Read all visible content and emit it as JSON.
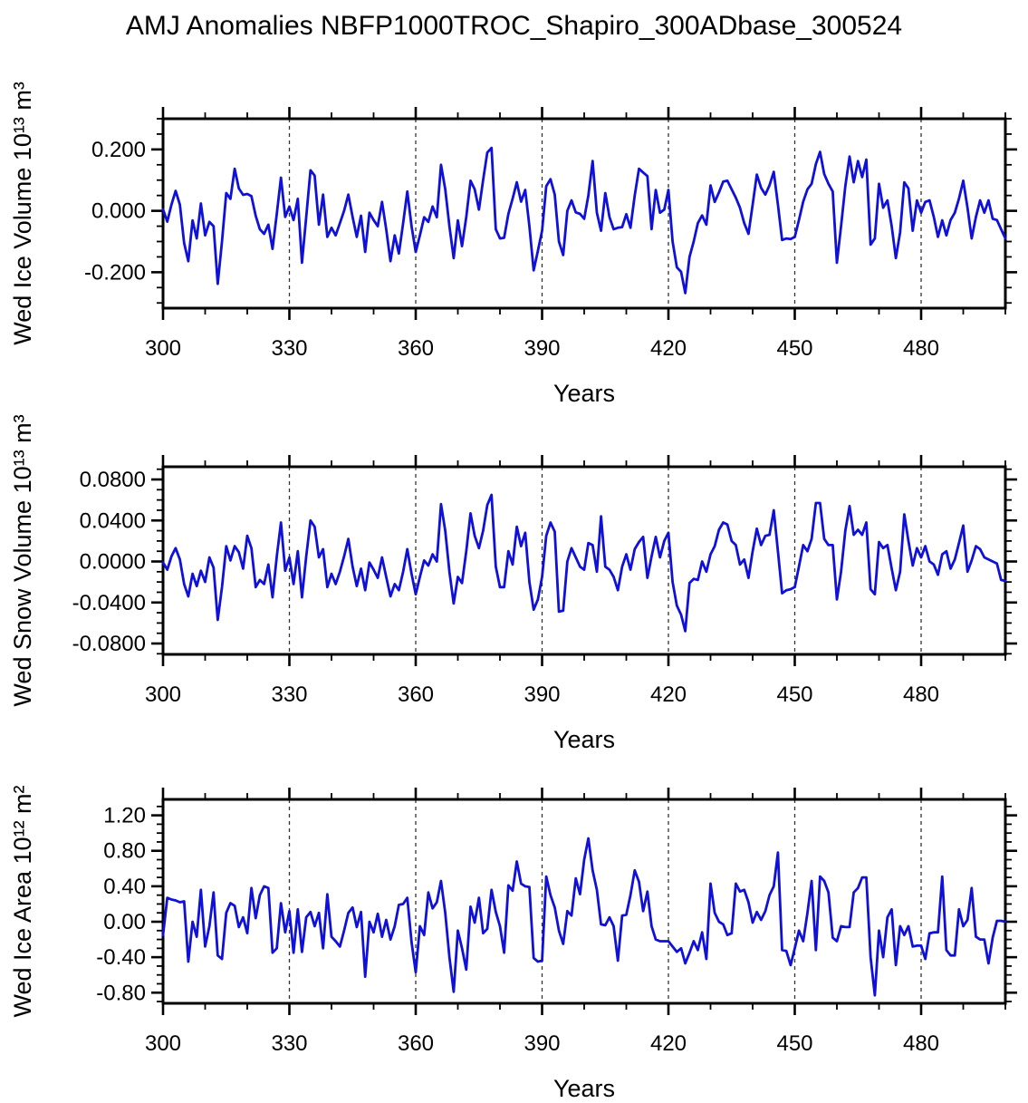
{
  "title": "AMJ Anomalies NBFP1000TROC_Shapiro_300ADbase_300524",
  "line_color": "#0f10d8",
  "chart_data": [
    {
      "type": "line",
      "title": "AMJ Anomalies NBFP1000TROC_Shapiro_300ADbase_300524",
      "ylabel": "Wed Ice Volume 10¹³ m³",
      "xlabel": "Years",
      "x_start": 300,
      "x_step": 1,
      "xlim": [
        300,
        500
      ],
      "ylim": [
        -0.317,
        0.3
      ],
      "xticks": {
        "major": [
          300,
          330,
          360,
          390,
          420,
          450,
          480
        ],
        "labels": [
          "300",
          "330",
          "360",
          "390",
          "420",
          "450",
          "480"
        ],
        "minor_step": 10
      },
      "yticks": {
        "major": [
          0.2,
          0.0,
          -0.2
        ],
        "labels": [
          "0.200",
          "0.000",
          "-0.200"
        ],
        "minor_step": 0.05
      },
      "gridlines_x": [
        330,
        360,
        390,
        420,
        450,
        480
      ],
      "line_color": "#0f10d8",
      "values": [
        0.005,
        -0.035,
        0.02,
        0.065,
        0.02,
        -0.105,
        -0.164,
        -0.031,
        -0.09,
        0.024,
        -0.08,
        -0.036,
        -0.05,
        -0.238,
        -0.1,
        0.058,
        0.039,
        0.137,
        0.073,
        0.052,
        0.055,
        0.048,
        -0.016,
        -0.06,
        -0.075,
        -0.045,
        -0.124,
        -0.01,
        0.108,
        -0.02,
        0.014,
        -0.03,
        0.039,
        -0.169,
        -0.02,
        0.132,
        0.115,
        -0.045,
        0.053,
        -0.085,
        -0.055,
        -0.08,
        -0.04,
        0.0,
        0.053,
        -0.02,
        -0.085,
        -0.016,
        -0.134,
        -0.006,
        -0.03,
        -0.05,
        0.029,
        -0.06,
        -0.164,
        -0.08,
        -0.139,
        -0.04,
        0.063,
        -0.05,
        -0.134,
        -0.08,
        -0.021,
        -0.036,
        0.014,
        -0.021,
        0.15,
        0.07,
        -0.05,
        -0.154,
        -0.031,
        -0.115,
        -0.02,
        0.098,
        0.07,
        0.004,
        0.1,
        0.19,
        0.205,
        -0.06,
        -0.09,
        -0.088,
        -0.01,
        0.04,
        0.093,
        0.03,
        0.068,
        -0.05,
        -0.194,
        -0.13,
        -0.065,
        0.08,
        0.103,
        0.053,
        -0.1,
        -0.144,
        0.0,
        0.034,
        -0.005,
        -0.01,
        -0.026,
        0.05,
        0.162,
        -0.006,
        -0.065,
        0.058,
        -0.02,
        -0.06,
        -0.055,
        -0.053,
        -0.011,
        -0.055,
        0.05,
        0.137,
        0.125,
        0.113,
        -0.06,
        0.068,
        -0.006,
        0.004,
        0.068,
        -0.1,
        -0.184,
        -0.199,
        -0.268,
        -0.15,
        -0.1,
        -0.04,
        -0.015,
        -0.045,
        0.083,
        0.029,
        0.06,
        0.095,
        0.098,
        0.07,
        0.043,
        0.01,
        -0.04,
        -0.075,
        0.02,
        0.118,
        0.075,
        0.053,
        0.083,
        0.127,
        0.02,
        -0.095,
        -0.09,
        -0.092,
        -0.085,
        -0.03,
        0.03,
        0.07,
        0.088,
        0.152,
        0.192,
        0.12,
        0.088,
        0.063,
        -0.169,
        -0.05,
        0.08,
        0.177,
        0.093,
        0.162,
        0.11,
        0.167,
        -0.11,
        -0.09,
        0.088,
        0.01,
        0.034,
        -0.05,
        -0.154,
        -0.07,
        0.093,
        0.073,
        -0.065,
        0.034,
        -0.006,
        0.029,
        0.034,
        -0.02,
        -0.085,
        -0.031,
        -0.08,
        -0.03,
        -0.006,
        0.04,
        0.098,
        0.01,
        -0.09,
        -0.02,
        0.034,
        -0.006,
        0.034,
        -0.026,
        -0.03,
        -0.06,
        -0.09
      ]
    },
    {
      "type": "line",
      "title": "",
      "ylabel": "Wed Snow Volume 10¹³ m³",
      "xlabel": "Years",
      "x_start": 300,
      "x_step": 1,
      "xlim": [
        300,
        500
      ],
      "ylim": [
        -0.0906,
        0.0924
      ],
      "xticks": {
        "major": [
          300,
          330,
          360,
          390,
          420,
          450,
          480
        ],
        "labels": [
          "300",
          "330",
          "360",
          "390",
          "420",
          "450",
          "480"
        ],
        "minor_step": 10
      },
      "yticks": {
        "major": [
          0.08,
          0.04,
          0.0,
          -0.04,
          -0.08
        ],
        "labels": [
          "0.0800",
          "0.0400",
          "0.0000",
          "-0.0400",
          "-0.0800"
        ],
        "minor_step": 0.01
      },
      "gridlines_x": [
        330,
        360,
        390,
        420,
        450,
        480
      ],
      "line_color": "#0f10d8",
      "values": [
        -0.001,
        -0.008,
        0.005,
        0.013,
        0.002,
        -0.022,
        -0.034,
        -0.012,
        -0.024,
        -0.009,
        -0.02,
        0.004,
        -0.006,
        -0.057,
        -0.025,
        0.015,
        0.001,
        0.015,
        0.009,
        -0.007,
        0.025,
        0.013,
        -0.025,
        -0.018,
        -0.022,
        -0.003,
        -0.035,
        0.005,
        0.038,
        -0.009,
        0.004,
        -0.022,
        0.01,
        -0.035,
        0.005,
        0.04,
        0.034,
        0.004,
        0.012,
        -0.025,
        -0.012,
        -0.022,
        -0.01,
        0.005,
        0.022,
        -0.005,
        -0.024,
        -0.007,
        -0.028,
        -0.001,
        -0.008,
        -0.016,
        0.004,
        -0.015,
        -0.034,
        -0.022,
        -0.028,
        -0.01,
        0.012,
        -0.012,
        -0.032,
        -0.015,
        0.001,
        -0.004,
        0.007,
        0.0,
        0.056,
        0.03,
        -0.01,
        -0.041,
        -0.015,
        -0.021,
        0.01,
        0.047,
        0.025,
        0.013,
        0.03,
        0.055,
        0.065,
        -0.005,
        -0.025,
        -0.025,
        0.01,
        -0.003,
        0.034,
        0.015,
        0.028,
        -0.02,
        -0.047,
        -0.037,
        -0.015,
        0.025,
        0.038,
        0.029,
        -0.049,
        -0.048,
        0.0,
        0.013,
        0.004,
        -0.005,
        -0.008,
        0.018,
        0.016,
        -0.01,
        0.044,
        -0.005,
        -0.008,
        -0.015,
        -0.028,
        -0.005,
        0.007,
        -0.008,
        0.012,
        0.019,
        0.024,
        -0.016,
        0.005,
        0.024,
        0.004,
        0.02,
        0.028,
        -0.02,
        -0.043,
        -0.052,
        -0.068,
        -0.021,
        -0.017,
        -0.018,
        0.0,
        -0.01,
        0.007,
        0.015,
        0.031,
        0.038,
        0.036,
        0.02,
        0.016,
        -0.003,
        0.002,
        -0.016,
        0.01,
        0.032,
        0.016,
        0.025,
        0.026,
        0.05,
        0.01,
        -0.031,
        -0.028,
        -0.027,
        -0.025,
        -0.005,
        0.016,
        0.01,
        0.022,
        0.057,
        0.057,
        0.022,
        0.016,
        0.016,
        -0.037,
        -0.01,
        0.03,
        0.054,
        0.026,
        0.031,
        0.026,
        0.038,
        -0.027,
        -0.032,
        0.019,
        0.013,
        0.016,
        -0.007,
        -0.028,
        -0.01,
        0.046,
        0.02,
        -0.004,
        0.013,
        0.004,
        0.015,
        0.0,
        -0.003,
        -0.013,
        0.007,
        0.01,
        -0.007,
        0.002,
        0.018,
        0.035,
        -0.01,
        0.001,
        0.015,
        0.012,
        0.004,
        0.002,
        0.0,
        -0.002,
        -0.018,
        -0.019
      ]
    },
    {
      "type": "line",
      "title": "",
      "ylabel": "Wed Ice Area 10¹² m²",
      "xlabel": "Years",
      "x_start": 300,
      "x_step": 1,
      "xlim": [
        300,
        500
      ],
      "ylim": [
        -0.92,
        1.38
      ],
      "xticks": {
        "major": [
          300,
          330,
          360,
          390,
          420,
          450,
          480
        ],
        "labels": [
          "300",
          "330",
          "360",
          "390",
          "420",
          "450",
          "480"
        ],
        "minor_step": 10
      },
      "yticks": {
        "major": [
          1.2,
          0.8,
          0.4,
          0.0,
          -0.4,
          -0.8
        ],
        "labels": [
          "1.20",
          "0.80",
          "0.40",
          "0.00",
          "-0.40",
          "-0.80"
        ],
        "minor_step": 0.1
      },
      "gridlines_x": [
        330,
        360,
        390,
        420,
        450,
        480
      ],
      "line_color": "#0f10d8",
      "values": [
        -0.15,
        0.27,
        0.25,
        0.24,
        0.22,
        0.23,
        -0.45,
        0.0,
        -0.17,
        0.36,
        -0.28,
        -0.05,
        0.33,
        -0.38,
        -0.42,
        0.1,
        0.21,
        0.18,
        -0.06,
        0.05,
        -0.13,
        0.38,
        0.04,
        0.3,
        0.4,
        0.38,
        -0.35,
        -0.3,
        0.21,
        -0.12,
        0.12,
        -0.35,
        0.14,
        -0.34,
        0.05,
        0.11,
        -0.05,
        0.1,
        -0.3,
        0.31,
        -0.17,
        -0.22,
        -0.28,
        -0.1,
        0.1,
        0.16,
        -0.06,
        0.11,
        -0.62,
        0.0,
        -0.12,
        0.09,
        -0.17,
        0.02,
        -0.2,
        -0.05,
        0.19,
        0.2,
        0.27,
        -0.23,
        -0.57,
        -0.05,
        -0.15,
        0.33,
        0.15,
        0.22,
        0.46,
        0.1,
        -0.4,
        -0.79,
        -0.1,
        -0.3,
        -0.54,
        0.17,
        -0.01,
        0.27,
        -0.13,
        -0.08,
        0.36,
        0.11,
        -0.05,
        -0.35,
        0.41,
        0.35,
        0.68,
        0.43,
        0.4,
        0.39,
        -0.41,
        -0.45,
        -0.44,
        0.51,
        0.3,
        0.16,
        -0.1,
        -0.25,
        0.12,
        0.07,
        0.49,
        0.31,
        0.7,
        0.94,
        0.58,
        0.36,
        -0.03,
        -0.04,
        0.05,
        -0.05,
        -0.44,
        0.07,
        0.08,
        0.3,
        0.58,
        0.45,
        0.12,
        0.34,
        -0.05,
        -0.2,
        -0.22,
        -0.22,
        -0.22,
        -0.28,
        -0.34,
        -0.3,
        -0.47,
        -0.35,
        -0.22,
        -0.32,
        -0.12,
        -0.42,
        0.43,
        0.1,
        0.0,
        -0.03,
        -0.15,
        -0.13,
        0.43,
        0.34,
        0.36,
        0.22,
        -0.01,
        0.11,
        0.02,
        0.12,
        0.3,
        0.4,
        0.78,
        -0.32,
        -0.33,
        -0.49,
        -0.3,
        -0.1,
        -0.22,
        0.1,
        0.46,
        -0.32,
        0.51,
        0.46,
        0.33,
        -0.18,
        -0.22,
        -0.05,
        -0.06,
        -0.06,
        0.33,
        0.38,
        0.5,
        0.5,
        -0.4,
        -0.83,
        -0.1,
        -0.4,
        0.05,
        0.14,
        -0.49,
        -0.05,
        -0.15,
        -0.05,
        -0.28,
        -0.27,
        -0.27,
        -0.42,
        -0.13,
        -0.12,
        -0.12,
        0.51,
        -0.32,
        -0.38,
        -0.38,
        0.14,
        -0.05,
        0.02,
        0.38,
        -0.17,
        -0.2,
        -0.2,
        -0.47,
        -0.18,
        0.01,
        0.01,
        0.0
      ]
    }
  ]
}
